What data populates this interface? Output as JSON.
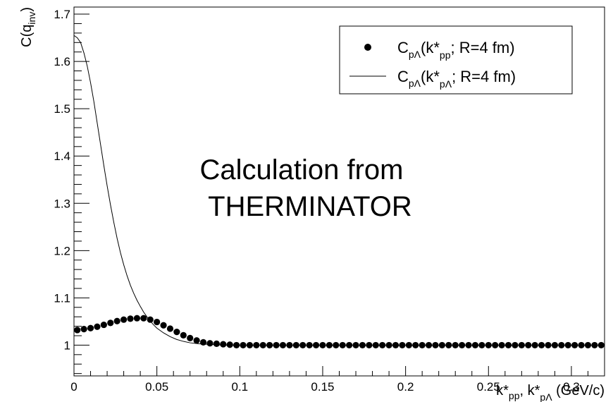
{
  "chart_data": {
    "type": "scatter",
    "title": "",
    "xlabel": {
      "base": "k*",
      "sub1": "pp",
      "sep": ", ",
      "base2": "k*",
      "sub2": "pΛ",
      "unit": " (GeV/c)"
    },
    "ylabel": {
      "base": "C(q",
      "sub": "inv",
      "close": ")"
    },
    "xlim": [
      0,
      0.32
    ],
    "ylim": [
      0.935,
      1.715
    ],
    "x_ticks": [
      0,
      0.05,
      0.1,
      0.15,
      0.2,
      0.25,
      0.3
    ],
    "x_tick_labels": [
      "0",
      "0.05",
      "0.1",
      "0.15",
      "0.2",
      "0.25",
      "0.3"
    ],
    "y_ticks": [
      1,
      1.1,
      1.2,
      1.3,
      1.4,
      1.5,
      1.6,
      1.7
    ],
    "y_tick_labels": [
      "1",
      "1.1",
      "1.2",
      "1.3",
      "1.4",
      "1.5",
      "1.6",
      "1.7"
    ],
    "legend_position": "top-right",
    "annotation": [
      "Calculation from",
      "THERMINATOR"
    ],
    "series": [
      {
        "style": "markers",
        "legend": {
          "base": "C",
          "sub": "pΛ",
          "mid": "(k*",
          "sub2": "pp",
          "tail": "; R=4 fm)"
        },
        "x": [
          0.002,
          0.006,
          0.01,
          0.014,
          0.018,
          0.022,
          0.026,
          0.03,
          0.034,
          0.038,
          0.042,
          0.046,
          0.05,
          0.054,
          0.058,
          0.062,
          0.066,
          0.07,
          0.074,
          0.078,
          0.082,
          0.086,
          0.09,
          0.094,
          0.098,
          0.102,
          0.106,
          0.11,
          0.114,
          0.118,
          0.122,
          0.126,
          0.13,
          0.134,
          0.138,
          0.142,
          0.146,
          0.15,
          0.154,
          0.158,
          0.162,
          0.166,
          0.17,
          0.174,
          0.178,
          0.182,
          0.186,
          0.19,
          0.194,
          0.198,
          0.202,
          0.206,
          0.21,
          0.214,
          0.218,
          0.222,
          0.226,
          0.23,
          0.234,
          0.238,
          0.242,
          0.246,
          0.25,
          0.254,
          0.258,
          0.262,
          0.266,
          0.27,
          0.274,
          0.278,
          0.282,
          0.286,
          0.29,
          0.294,
          0.298,
          0.302,
          0.306,
          0.31,
          0.314,
          0.318
        ],
        "y": [
          1.032,
          1.034,
          1.036,
          1.039,
          1.043,
          1.047,
          1.051,
          1.054,
          1.056,
          1.057,
          1.057,
          1.054,
          1.049,
          1.042,
          1.035,
          1.028,
          1.021,
          1.015,
          1.01,
          1.006,
          1.004,
          1.003,
          1.002,
          1.001,
          1.0,
          1.0,
          1.0,
          1.0,
          1.0,
          1.0,
          1.0,
          1.0,
          1.0,
          1.0,
          1.0,
          1.0,
          1.0,
          1.0,
          1.0,
          1.0,
          1.0,
          1.0,
          1.0,
          1.0,
          1.0,
          1.0,
          1.0,
          1.0,
          1.0,
          1.0,
          1.0,
          1.0,
          1.0,
          1.0,
          1.0,
          1.0,
          1.0,
          1.0,
          1.0,
          1.0,
          1.0,
          1.0,
          1.0,
          1.0,
          1.0,
          1.0,
          1.0,
          1.0,
          1.0,
          1.0,
          1.0,
          1.0,
          1.0,
          1.0,
          1.0,
          1.0,
          1.0,
          1.0,
          1.0,
          1.0
        ]
      },
      {
        "style": "line",
        "legend": {
          "base": "C",
          "sub": "pΛ",
          "mid": "(k*",
          "sub2": "pΛ",
          "tail": "; R=4 fm)"
        },
        "x": [
          0.0,
          0.002,
          0.004,
          0.006,
          0.008,
          0.01,
          0.012,
          0.014,
          0.016,
          0.018,
          0.02,
          0.022,
          0.024,
          0.026,
          0.028,
          0.03,
          0.032,
          0.034,
          0.036,
          0.038,
          0.04,
          0.042,
          0.044,
          0.046,
          0.048,
          0.05,
          0.054,
          0.058,
          0.062,
          0.066,
          0.07,
          0.075,
          0.08,
          0.085,
          0.09,
          0.1,
          0.11,
          0.12,
          0.14,
          0.16,
          0.2,
          0.25,
          0.3,
          0.32
        ],
        "y": [
          1.655,
          1.65,
          1.64,
          1.618,
          1.59,
          1.555,
          1.515,
          1.47,
          1.425,
          1.38,
          1.337,
          1.297,
          1.26,
          1.226,
          1.196,
          1.17,
          1.147,
          1.127,
          1.11,
          1.095,
          1.082,
          1.07,
          1.06,
          1.051,
          1.043,
          1.036,
          1.026,
          1.018,
          1.012,
          1.008,
          1.005,
          1.003,
          1.002,
          1.001,
          1.0,
          1.0,
          1.0,
          1.0,
          1.0,
          1.0,
          1.0,
          1.0,
          1.0,
          1.0
        ]
      }
    ]
  }
}
